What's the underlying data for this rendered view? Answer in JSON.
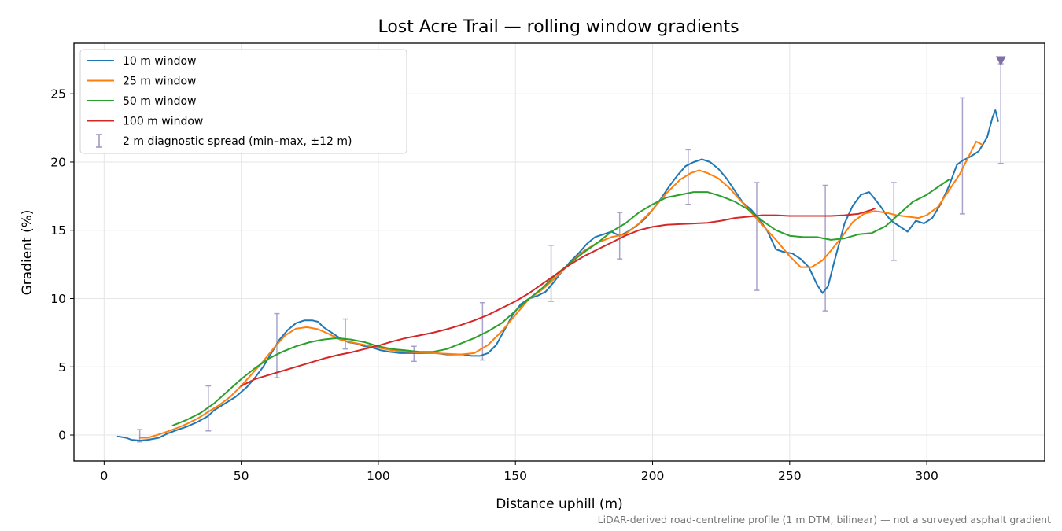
{
  "chart_data": {
    "type": "line",
    "title": "Lost Acre Trail — rolling window gradients",
    "xlabel": "Distance uphill (m)",
    "ylabel": "Gradient (%)",
    "xlim": [
      -11,
      343
    ],
    "ylim": [
      -1.9,
      28.7
    ],
    "xticks": [
      0,
      50,
      100,
      150,
      200,
      250,
      300
    ],
    "yticks": [
      0,
      5,
      10,
      15,
      20,
      25
    ],
    "grid": true,
    "legend_position": "upper-left",
    "caption": "LiDAR-derived road-centreline profile (1 m DTM, bilinear) — not a surveyed asphalt gradient",
    "series": [
      {
        "name": "10 m window",
        "color": "#1f77b4",
        "points": [
          [
            5,
            -0.1
          ],
          [
            8,
            -0.2
          ],
          [
            10,
            -0.35
          ],
          [
            13,
            -0.4
          ],
          [
            16,
            -0.35
          ],
          [
            20,
            -0.2
          ],
          [
            23,
            0.1
          ],
          [
            27,
            0.4
          ],
          [
            30,
            0.6
          ],
          [
            34,
            0.95
          ],
          [
            38,
            1.4
          ],
          [
            40,
            1.8
          ],
          [
            44,
            2.3
          ],
          [
            48,
            2.8
          ],
          [
            52,
            3.5
          ],
          [
            55,
            4.2
          ],
          [
            58,
            5.0
          ],
          [
            61,
            6.0
          ],
          [
            64,
            7.0
          ],
          [
            67,
            7.7
          ],
          [
            70,
            8.2
          ],
          [
            73,
            8.4
          ],
          [
            76,
            8.4
          ],
          [
            78,
            8.3
          ],
          [
            80,
            7.9
          ],
          [
            83,
            7.5
          ],
          [
            86,
            7.1
          ],
          [
            89,
            6.8
          ],
          [
            92,
            6.7
          ],
          [
            95,
            6.5
          ],
          [
            98,
            6.4
          ],
          [
            101,
            6.2
          ],
          [
            104,
            6.1
          ],
          [
            108,
            6.0
          ],
          [
            111,
            6.0
          ],
          [
            114,
            6.0
          ],
          [
            118,
            6.0
          ],
          [
            121,
            6.0
          ],
          [
            125,
            5.9
          ],
          [
            128,
            5.9
          ],
          [
            131,
            5.9
          ],
          [
            134,
            5.8
          ],
          [
            137,
            5.8
          ],
          [
            140,
            6.0
          ],
          [
            143,
            6.6
          ],
          [
            146,
            7.7
          ],
          [
            149,
            8.8
          ],
          [
            152,
            9.6
          ],
          [
            155,
            10.0
          ],
          [
            158,
            10.2
          ],
          [
            161,
            10.5
          ],
          [
            164,
            11.2
          ],
          [
            167,
            12.0
          ],
          [
            170,
            12.7
          ],
          [
            173,
            13.3
          ],
          [
            176,
            14.0
          ],
          [
            179,
            14.5
          ],
          [
            182,
            14.7
          ],
          [
            185,
            14.9
          ],
          [
            188,
            14.6
          ],
          [
            191,
            14.9
          ],
          [
            194,
            15.3
          ],
          [
            197,
            15.8
          ],
          [
            200,
            16.5
          ],
          [
            203,
            17.3
          ],
          [
            206,
            18.2
          ],
          [
            209,
            19.0
          ],
          [
            212,
            19.7
          ],
          [
            215,
            20.0
          ],
          [
            218,
            20.2
          ],
          [
            221,
            20.0
          ],
          [
            224,
            19.5
          ],
          [
            227,
            18.8
          ],
          [
            230,
            17.9
          ],
          [
            233,
            17.0
          ],
          [
            236,
            16.5
          ],
          [
            239,
            15.8
          ],
          [
            242,
            14.9
          ],
          [
            245,
            13.6
          ],
          [
            248,
            13.4
          ],
          [
            251,
            13.3
          ],
          [
            254,
            12.9
          ],
          [
            257,
            12.3
          ],
          [
            260,
            11.0
          ],
          [
            262,
            10.4
          ],
          [
            264,
            10.9
          ],
          [
            266,
            12.5
          ],
          [
            268,
            14.0
          ],
          [
            270,
            15.5
          ],
          [
            273,
            16.8
          ],
          [
            276,
            17.6
          ],
          [
            279,
            17.8
          ],
          [
            281,
            17.3
          ],
          [
            283,
            16.8
          ],
          [
            285,
            16.2
          ],
          [
            287,
            15.7
          ],
          [
            290,
            15.3
          ],
          [
            293,
            14.9
          ],
          [
            296,
            15.7
          ],
          [
            299,
            15.5
          ],
          [
            302,
            15.9
          ],
          [
            305,
            16.9
          ],
          [
            308,
            18.2
          ],
          [
            311,
            19.8
          ],
          [
            313,
            20.1
          ],
          [
            316,
            20.4
          ],
          [
            319,
            20.8
          ],
          [
            322,
            21.8
          ],
          [
            324,
            23.3
          ],
          [
            325,
            23.8
          ],
          [
            326,
            23.0
          ]
        ]
      },
      {
        "name": "25 m window",
        "color": "#ff7f0e",
        "points": [
          [
            13,
            -0.2
          ],
          [
            16,
            -0.2
          ],
          [
            20,
            0.05
          ],
          [
            23,
            0.25
          ],
          [
            27,
            0.55
          ],
          [
            30,
            0.8
          ],
          [
            34,
            1.2
          ],
          [
            38,
            1.7
          ],
          [
            42,
            2.2
          ],
          [
            46,
            2.8
          ],
          [
            50,
            3.6
          ],
          [
            54,
            4.5
          ],
          [
            58,
            5.4
          ],
          [
            62,
            6.4
          ],
          [
            66,
            7.3
          ],
          [
            70,
            7.8
          ],
          [
            74,
            7.9
          ],
          [
            78,
            7.75
          ],
          [
            82,
            7.4
          ],
          [
            86,
            7.0
          ],
          [
            90,
            6.8
          ],
          [
            95,
            6.6
          ],
          [
            100,
            6.4
          ],
          [
            105,
            6.2
          ],
          [
            110,
            6.1
          ],
          [
            115,
            6.05
          ],
          [
            120,
            6.0
          ],
          [
            125,
            5.95
          ],
          [
            130,
            5.9
          ],
          [
            135,
            6.0
          ],
          [
            140,
            6.6
          ],
          [
            145,
            7.6
          ],
          [
            150,
            8.8
          ],
          [
            155,
            10.0
          ],
          [
            160,
            10.7
          ],
          [
            165,
            11.6
          ],
          [
            170,
            12.6
          ],
          [
            175,
            13.5
          ],
          [
            180,
            14.1
          ],
          [
            185,
            14.5
          ],
          [
            190,
            14.7
          ],
          [
            195,
            15.5
          ],
          [
            200,
            16.5
          ],
          [
            205,
            17.7
          ],
          [
            210,
            18.7
          ],
          [
            214,
            19.2
          ],
          [
            217,
            19.4
          ],
          [
            220,
            19.2
          ],
          [
            224,
            18.8
          ],
          [
            228,
            18.1
          ],
          [
            232,
            17.2
          ],
          [
            236,
            16.3
          ],
          [
            240,
            15.4
          ],
          [
            245,
            14.3
          ],
          [
            250,
            13.1
          ],
          [
            254,
            12.3
          ],
          [
            258,
            12.3
          ],
          [
            262,
            12.8
          ],
          [
            265,
            13.5
          ],
          [
            269,
            14.5
          ],
          [
            273,
            15.6
          ],
          [
            277,
            16.2
          ],
          [
            281,
            16.4
          ],
          [
            285,
            16.3
          ],
          [
            289,
            16.1
          ],
          [
            293,
            16.0
          ],
          [
            297,
            15.9
          ],
          [
            300,
            16.1
          ],
          [
            304,
            16.7
          ],
          [
            308,
            17.9
          ],
          [
            312,
            19.1
          ],
          [
            315,
            20.3
          ],
          [
            318,
            21.5
          ],
          [
            320,
            21.3
          ]
        ]
      },
      {
        "name": "50 m window",
        "color": "#2ca02c",
        "points": [
          [
            25,
            0.7
          ],
          [
            30,
            1.1
          ],
          [
            35,
            1.6
          ],
          [
            40,
            2.3
          ],
          [
            45,
            3.2
          ],
          [
            50,
            4.1
          ],
          [
            55,
            4.9
          ],
          [
            60,
            5.6
          ],
          [
            65,
            6.1
          ],
          [
            70,
            6.5
          ],
          [
            75,
            6.8
          ],
          [
            80,
            7.0
          ],
          [
            85,
            7.1
          ],
          [
            90,
            7.0
          ],
          [
            95,
            6.8
          ],
          [
            100,
            6.5
          ],
          [
            105,
            6.3
          ],
          [
            110,
            6.2
          ],
          [
            115,
            6.1
          ],
          [
            120,
            6.1
          ],
          [
            125,
            6.3
          ],
          [
            130,
            6.7
          ],
          [
            135,
            7.1
          ],
          [
            140,
            7.6
          ],
          [
            145,
            8.2
          ],
          [
            150,
            9.1
          ],
          [
            155,
            10.0
          ],
          [
            160,
            10.8
          ],
          [
            165,
            11.8
          ],
          [
            170,
            12.6
          ],
          [
            175,
            13.4
          ],
          [
            180,
            14.1
          ],
          [
            185,
            14.9
          ],
          [
            190,
            15.5
          ],
          [
            195,
            16.3
          ],
          [
            200,
            16.9
          ],
          [
            205,
            17.4
          ],
          [
            210,
            17.6
          ],
          [
            215,
            17.8
          ],
          [
            220,
            17.8
          ],
          [
            225,
            17.5
          ],
          [
            230,
            17.1
          ],
          [
            235,
            16.5
          ],
          [
            240,
            15.7
          ],
          [
            245,
            15.0
          ],
          [
            250,
            14.6
          ],
          [
            255,
            14.5
          ],
          [
            260,
            14.5
          ],
          [
            265,
            14.3
          ],
          [
            270,
            14.4
          ],
          [
            275,
            14.7
          ],
          [
            280,
            14.8
          ],
          [
            285,
            15.3
          ],
          [
            290,
            16.2
          ],
          [
            295,
            17.1
          ],
          [
            300,
            17.6
          ],
          [
            305,
            18.3
          ],
          [
            308,
            18.7
          ]
        ]
      },
      {
        "name": "100 m window",
        "color": "#d62728",
        "points": [
          [
            50,
            3.6
          ],
          [
            55,
            4.1
          ],
          [
            60,
            4.4
          ],
          [
            65,
            4.7
          ],
          [
            70,
            5.0
          ],
          [
            75,
            5.3
          ],
          [
            80,
            5.6
          ],
          [
            85,
            5.85
          ],
          [
            90,
            6.05
          ],
          [
            95,
            6.3
          ],
          [
            100,
            6.55
          ],
          [
            105,
            6.85
          ],
          [
            110,
            7.1
          ],
          [
            115,
            7.3
          ],
          [
            120,
            7.5
          ],
          [
            125,
            7.75
          ],
          [
            130,
            8.05
          ],
          [
            135,
            8.4
          ],
          [
            140,
            8.8
          ],
          [
            145,
            9.3
          ],
          [
            150,
            9.8
          ],
          [
            155,
            10.4
          ],
          [
            160,
            11.1
          ],
          [
            165,
            11.8
          ],
          [
            170,
            12.5
          ],
          [
            175,
            13.1
          ],
          [
            180,
            13.6
          ],
          [
            185,
            14.1
          ],
          [
            190,
            14.6
          ],
          [
            195,
            15.0
          ],
          [
            200,
            15.25
          ],
          [
            205,
            15.4
          ],
          [
            210,
            15.45
          ],
          [
            215,
            15.5
          ],
          [
            220,
            15.55
          ],
          [
            225,
            15.7
          ],
          [
            230,
            15.9
          ],
          [
            235,
            16.0
          ],
          [
            240,
            16.1
          ],
          [
            245,
            16.1
          ],
          [
            250,
            16.05
          ],
          [
            255,
            16.05
          ],
          [
            260,
            16.05
          ],
          [
            265,
            16.05
          ],
          [
            270,
            16.1
          ],
          [
            275,
            16.2
          ],
          [
            280,
            16.5
          ],
          [
            281,
            16.6
          ]
        ]
      }
    ],
    "error_bars": {
      "name": "2 m diagnostic spread (min–max, ±12 m)",
      "color": "#9b93c4",
      "bars": [
        [
          13,
          -0.5,
          0.4
        ],
        [
          38,
          0.3,
          3.6
        ],
        [
          63,
          4.2,
          8.9
        ],
        [
          88,
          6.3,
          8.5
        ],
        [
          113,
          5.4,
          6.5
        ],
        [
          138,
          5.5,
          9.7
        ],
        [
          163,
          9.8,
          13.9
        ],
        [
          188,
          12.9,
          16.3
        ],
        [
          213,
          16.9,
          20.9
        ],
        [
          238,
          10.6,
          18.5
        ],
        [
          263,
          9.1,
          18.3
        ],
        [
          288,
          12.8,
          18.5
        ],
        [
          313,
          16.2,
          24.7
        ],
        [
          327,
          19.9,
          27.2
        ]
      ],
      "marker": {
        "x": 327,
        "y": 27.4
      }
    }
  }
}
